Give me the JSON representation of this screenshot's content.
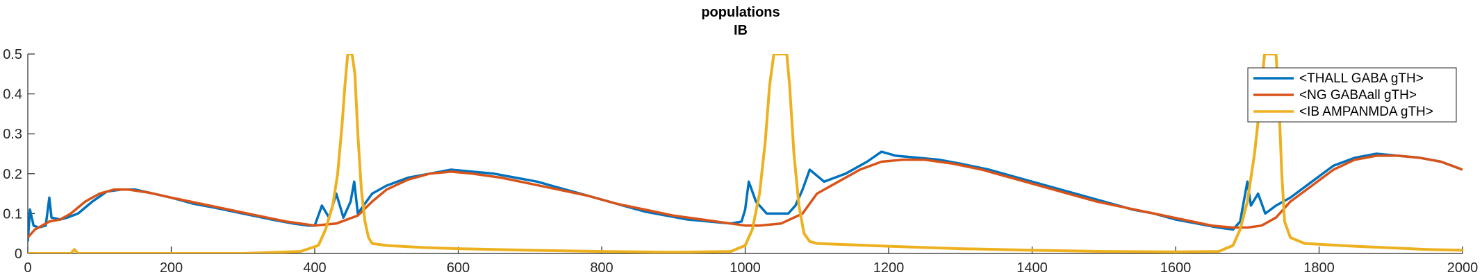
{
  "chart_data": {
    "type": "line",
    "title": [
      "populations",
      "IB"
    ],
    "xlim": [
      0,
      2000
    ],
    "ylim": [
      0,
      0.5
    ],
    "xticks": [
      0,
      200,
      400,
      600,
      800,
      1000,
      1200,
      1400,
      1600,
      1800,
      2000
    ],
    "yticks": [
      0,
      0.1,
      0.2,
      0.3,
      0.4,
      0.5
    ],
    "ytick_labels": [
      "0",
      "0.1",
      "0.2",
      "0.3",
      "0.4",
      "0.5"
    ],
    "legend_position": "top-right",
    "grid": false,
    "series": [
      {
        "name": "<THALL GABA gTH>",
        "color": "#0072bd",
        "points": [
          [
            0,
            0.03
          ],
          [
            3,
            0.11
          ],
          [
            8,
            0.07
          ],
          [
            15,
            0.065
          ],
          [
            25,
            0.07
          ],
          [
            30,
            0.14
          ],
          [
            33,
            0.09
          ],
          [
            45,
            0.085
          ],
          [
            55,
            0.09
          ],
          [
            70,
            0.1
          ],
          [
            90,
            0.13
          ],
          [
            110,
            0.155
          ],
          [
            130,
            0.16
          ],
          [
            150,
            0.16
          ],
          [
            175,
            0.15
          ],
          [
            200,
            0.14
          ],
          [
            230,
            0.125
          ],
          [
            260,
            0.115
          ],
          [
            300,
            0.1
          ],
          [
            340,
            0.085
          ],
          [
            370,
            0.075
          ],
          [
            390,
            0.07
          ],
          [
            400,
            0.07
          ],
          [
            410,
            0.12
          ],
          [
            420,
            0.09
          ],
          [
            430,
            0.15
          ],
          [
            440,
            0.09
          ],
          [
            450,
            0.13
          ],
          [
            455,
            0.18
          ],
          [
            460,
            0.1
          ],
          [
            480,
            0.15
          ],
          [
            500,
            0.17
          ],
          [
            530,
            0.19
          ],
          [
            560,
            0.2
          ],
          [
            590,
            0.21
          ],
          [
            620,
            0.205
          ],
          [
            650,
            0.2
          ],
          [
            680,
            0.19
          ],
          [
            710,
            0.18
          ],
          [
            740,
            0.165
          ],
          [
            770,
            0.15
          ],
          [
            800,
            0.135
          ],
          [
            830,
            0.12
          ],
          [
            860,
            0.105
          ],
          [
            890,
            0.095
          ],
          [
            920,
            0.085
          ],
          [
            950,
            0.08
          ],
          [
            980,
            0.075
          ],
          [
            995,
            0.08
          ],
          [
            1000,
            0.11
          ],
          [
            1005,
            0.18
          ],
          [
            1015,
            0.13
          ],
          [
            1030,
            0.1
          ],
          [
            1040,
            0.1
          ],
          [
            1060,
            0.1
          ],
          [
            1070,
            0.12
          ],
          [
            1080,
            0.16
          ],
          [
            1090,
            0.21
          ],
          [
            1110,
            0.18
          ],
          [
            1140,
            0.2
          ],
          [
            1170,
            0.23
          ],
          [
            1190,
            0.255
          ],
          [
            1210,
            0.245
          ],
          [
            1240,
            0.24
          ],
          [
            1270,
            0.235
          ],
          [
            1300,
            0.225
          ],
          [
            1340,
            0.21
          ],
          [
            1380,
            0.19
          ],
          [
            1420,
            0.17
          ],
          [
            1460,
            0.15
          ],
          [
            1500,
            0.13
          ],
          [
            1540,
            0.11
          ],
          [
            1570,
            0.1
          ],
          [
            1600,
            0.085
          ],
          [
            1630,
            0.075
          ],
          [
            1660,
            0.065
          ],
          [
            1680,
            0.06
          ],
          [
            1690,
            0.08
          ],
          [
            1700,
            0.18
          ],
          [
            1705,
            0.12
          ],
          [
            1715,
            0.15
          ],
          [
            1725,
            0.1
          ],
          [
            1740,
            0.12
          ],
          [
            1760,
            0.14
          ],
          [
            1790,
            0.18
          ],
          [
            1820,
            0.22
          ],
          [
            1850,
            0.24
          ],
          [
            1880,
            0.25
          ],
          [
            1910,
            0.245
          ],
          [
            1940,
            0.24
          ],
          [
            1970,
            0.23
          ],
          [
            2000,
            0.21
          ]
        ]
      },
      {
        "name": "<NG GABAall gTH>",
        "color": "#d95319",
        "points": [
          [
            0,
            0.04
          ],
          [
            10,
            0.06
          ],
          [
            20,
            0.07
          ],
          [
            30,
            0.08
          ],
          [
            45,
            0.085
          ],
          [
            60,
            0.1
          ],
          [
            80,
            0.13
          ],
          [
            100,
            0.15
          ],
          [
            120,
            0.16
          ],
          [
            140,
            0.16
          ],
          [
            170,
            0.152
          ],
          [
            200,
            0.14
          ],
          [
            240,
            0.125
          ],
          [
            280,
            0.11
          ],
          [
            320,
            0.095
          ],
          [
            360,
            0.08
          ],
          [
            400,
            0.07
          ],
          [
            430,
            0.075
          ],
          [
            460,
            0.095
          ],
          [
            480,
            0.13
          ],
          [
            500,
            0.16
          ],
          [
            530,
            0.185
          ],
          [
            560,
            0.2
          ],
          [
            590,
            0.205
          ],
          [
            620,
            0.2
          ],
          [
            660,
            0.19
          ],
          [
            700,
            0.175
          ],
          [
            740,
            0.16
          ],
          [
            780,
            0.145
          ],
          [
            820,
            0.125
          ],
          [
            860,
            0.11
          ],
          [
            900,
            0.095
          ],
          [
            940,
            0.085
          ],
          [
            980,
            0.075
          ],
          [
            1000,
            0.07
          ],
          [
            1020,
            0.07
          ],
          [
            1050,
            0.075
          ],
          [
            1080,
            0.1
          ],
          [
            1100,
            0.15
          ],
          [
            1130,
            0.18
          ],
          [
            1160,
            0.21
          ],
          [
            1190,
            0.23
          ],
          [
            1220,
            0.235
          ],
          [
            1250,
            0.235
          ],
          [
            1290,
            0.225
          ],
          [
            1330,
            0.21
          ],
          [
            1370,
            0.19
          ],
          [
            1410,
            0.17
          ],
          [
            1450,
            0.15
          ],
          [
            1490,
            0.13
          ],
          [
            1530,
            0.115
          ],
          [
            1570,
            0.1
          ],
          [
            1610,
            0.085
          ],
          [
            1650,
            0.07
          ],
          [
            1680,
            0.065
          ],
          [
            1700,
            0.065
          ],
          [
            1720,
            0.07
          ],
          [
            1740,
            0.09
          ],
          [
            1760,
            0.13
          ],
          [
            1790,
            0.17
          ],
          [
            1820,
            0.21
          ],
          [
            1850,
            0.235
          ],
          [
            1880,
            0.245
          ],
          [
            1910,
            0.245
          ],
          [
            1940,
            0.24
          ],
          [
            1970,
            0.23
          ],
          [
            2000,
            0.21
          ]
        ]
      },
      {
        "name": "<IB AMPANMDA gTH>",
        "color": "#edb120",
        "points": [
          [
            0,
            0.0
          ],
          [
            60,
            0.0
          ],
          [
            65,
            0.01
          ],
          [
            70,
            0.0
          ],
          [
            300,
            0.0
          ],
          [
            380,
            0.005
          ],
          [
            405,
            0.02
          ],
          [
            415,
            0.06
          ],
          [
            425,
            0.12
          ],
          [
            432,
            0.2
          ],
          [
            438,
            0.32
          ],
          [
            442,
            0.42
          ],
          [
            446,
            0.5
          ],
          [
            452,
            0.5
          ],
          [
            456,
            0.45
          ],
          [
            460,
            0.3
          ],
          [
            465,
            0.16
          ],
          [
            470,
            0.08
          ],
          [
            475,
            0.04
          ],
          [
            480,
            0.025
          ],
          [
            500,
            0.02
          ],
          [
            550,
            0.015
          ],
          [
            600,
            0.012
          ],
          [
            700,
            0.008
          ],
          [
            800,
            0.005
          ],
          [
            900,
            0.003
          ],
          [
            980,
            0.005
          ],
          [
            1000,
            0.02
          ],
          [
            1010,
            0.06
          ],
          [
            1020,
            0.15
          ],
          [
            1028,
            0.28
          ],
          [
            1034,
            0.42
          ],
          [
            1040,
            0.5
          ],
          [
            1058,
            0.5
          ],
          [
            1062,
            0.42
          ],
          [
            1068,
            0.25
          ],
          [
            1075,
            0.12
          ],
          [
            1082,
            0.05
          ],
          [
            1090,
            0.03
          ],
          [
            1100,
            0.025
          ],
          [
            1200,
            0.018
          ],
          [
            1300,
            0.012
          ],
          [
            1400,
            0.008
          ],
          [
            1500,
            0.005
          ],
          [
            1600,
            0.004
          ],
          [
            1660,
            0.005
          ],
          [
            1680,
            0.02
          ],
          [
            1690,
            0.06
          ],
          [
            1700,
            0.13
          ],
          [
            1710,
            0.25
          ],
          [
            1718,
            0.38
          ],
          [
            1724,
            0.5
          ],
          [
            1740,
            0.5
          ],
          [
            1744,
            0.38
          ],
          [
            1748,
            0.2
          ],
          [
            1752,
            0.08
          ],
          [
            1760,
            0.04
          ],
          [
            1780,
            0.025
          ],
          [
            1850,
            0.018
          ],
          [
            1950,
            0.01
          ],
          [
            2000,
            0.008
          ]
        ]
      }
    ]
  }
}
